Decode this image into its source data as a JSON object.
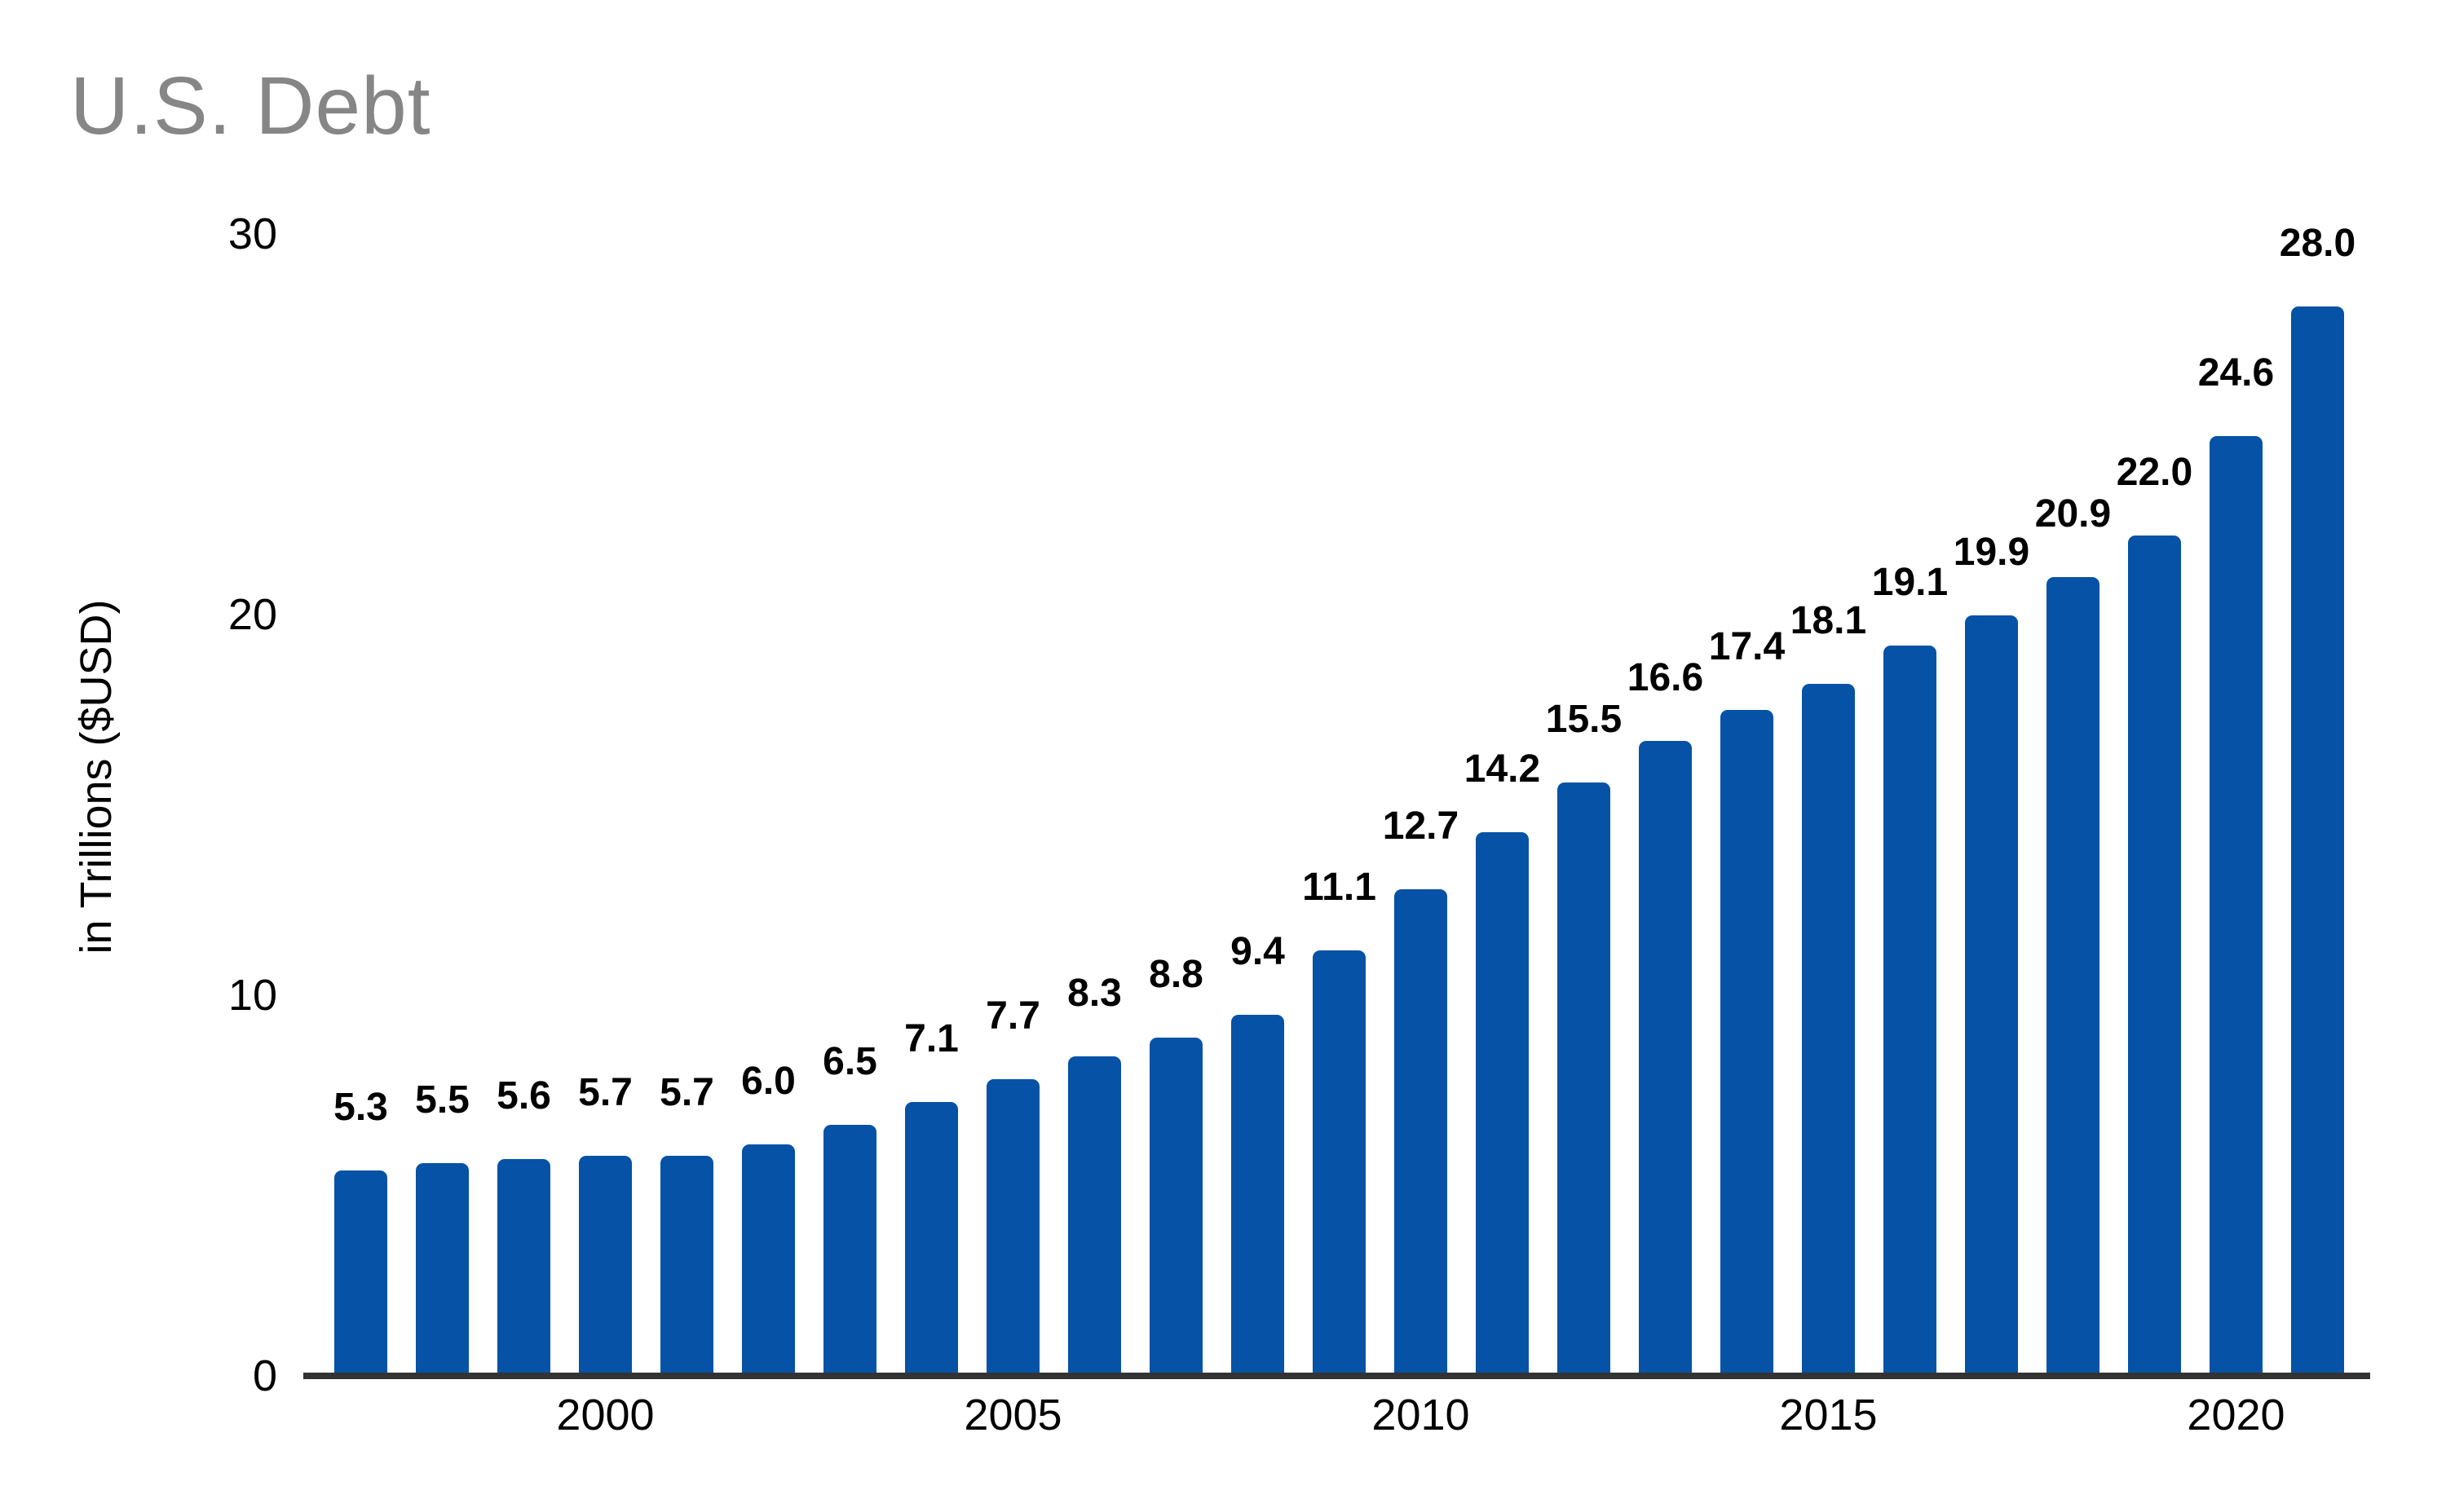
{
  "chart_data": {
    "type": "bar",
    "title": "U.S. Debt",
    "xlabel": "",
    "ylabel": "in Trillions ($USD)",
    "categories": [
      1997,
      1998,
      1999,
      2000,
      2001,
      2002,
      2003,
      2004,
      2005,
      2006,
      2007,
      2008,
      2009,
      2010,
      2011,
      2012,
      2013,
      2014,
      2015,
      2016,
      2017,
      2018,
      2019,
      2020,
      2021
    ],
    "values": [
      5.3,
      5.5,
      5.6,
      5.7,
      5.7,
      6.0,
      6.5,
      7.1,
      7.7,
      8.3,
      8.8,
      9.4,
      11.1,
      12.7,
      14.2,
      15.5,
      16.6,
      17.4,
      18.1,
      19.1,
      19.9,
      20.9,
      22.0,
      24.6,
      28.0
    ],
    "value_labels": [
      "5.3",
      "5.5",
      "5.6",
      "5.7",
      "5.7",
      "6.0",
      "6.5",
      "7.1",
      "7.7",
      "8.3",
      "8.8",
      "9.4",
      "11.1",
      "12.7",
      "14.2",
      "15.5",
      "16.6",
      "17.4",
      "18.1",
      "19.1",
      "19.9",
      "20.9",
      "22.0",
      "24.6",
      "28.0"
    ],
    "x_tick_labels": [
      "2000",
      "2005",
      "2010",
      "2015",
      "2020"
    ],
    "y_tick_labels": [
      "0",
      "10",
      "20",
      "30"
    ],
    "y_ticks": [
      0,
      10,
      20,
      30
    ],
    "ylim": [
      0,
      30
    ],
    "grid": false,
    "legend": false,
    "colors": {
      "bar": "#0552a6",
      "axis_line": "#333333",
      "title_text": "#868686",
      "label_text": "#000000"
    }
  }
}
